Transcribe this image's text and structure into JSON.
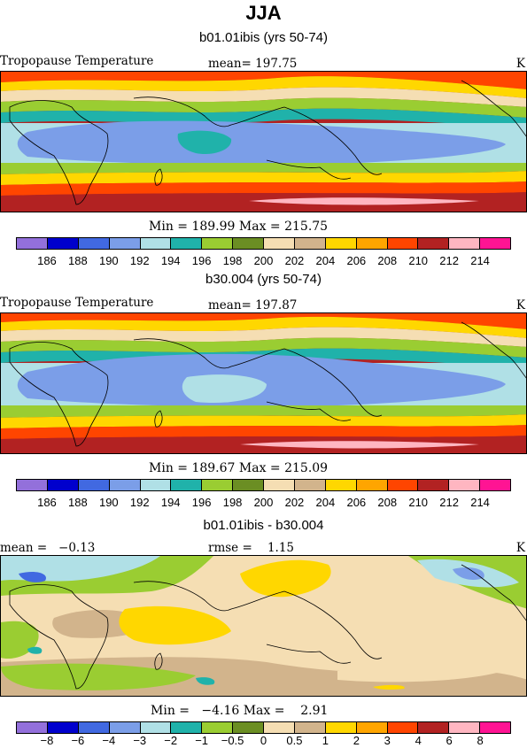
{
  "title": "JJA",
  "panels": [
    {
      "title": "b01.01ibis (yrs 50-74)",
      "left_label": "Tropopause Temperature",
      "center_label": "mean= 197.75",
      "right_label": "K",
      "stats": "Min = 189.99 Max = 215.75",
      "legend_labels": [
        "186",
        "188",
        "190",
        "192",
        "194",
        "196",
        "198",
        "200",
        "202",
        "204",
        "206",
        "208",
        "210",
        "212",
        "214"
      ]
    },
    {
      "title": "b30.004 (yrs 50-74)",
      "left_label": "Tropopause Temperature",
      "center_label": "mean= 197.87",
      "right_label": "K",
      "stats": "Min = 189.67 Max = 215.09",
      "legend_labels": [
        "186",
        "188",
        "190",
        "192",
        "194",
        "196",
        "198",
        "200",
        "202",
        "204",
        "206",
        "208",
        "210",
        "212",
        "214"
      ]
    },
    {
      "title": "b01.01ibis - b30.004",
      "left_label": "mean =   −0.13",
      "center_label": "rmse =    1.15",
      "right_label": "K",
      "stats": "Min =   −4.16 Max =    2.91",
      "legend_labels": [
        "−8",
        "−6",
        "−4",
        "−3",
        "−2",
        "−1",
        "−0.5",
        "0",
        "0.5",
        "1",
        "2",
        "3",
        "4",
        "6",
        "8"
      ]
    }
  ],
  "chart_data": [
    {
      "type": "heatmap",
      "title": "b01.01ibis (yrs 50-74)",
      "variable": "Tropopause Temperature",
      "units": "K",
      "mean": 197.75,
      "min": 189.99,
      "max": 215.75,
      "levels": [
        186,
        188,
        190,
        192,
        194,
        196,
        198,
        200,
        202,
        204,
        206,
        208,
        210,
        212,
        214
      ]
    },
    {
      "type": "heatmap",
      "title": "b30.004 (yrs 50-74)",
      "variable": "Tropopause Temperature",
      "units": "K",
      "mean": 197.87,
      "min": 189.67,
      "max": 215.09,
      "levels": [
        186,
        188,
        190,
        192,
        194,
        196,
        198,
        200,
        202,
        204,
        206,
        208,
        210,
        212,
        214
      ]
    },
    {
      "type": "heatmap",
      "title": "b01.01ibis - b30.004",
      "units": "K",
      "mean": -0.13,
      "rmse": 1.15,
      "min": -4.16,
      "max": 2.91,
      "levels": [
        -8,
        -6,
        -4,
        -3,
        -2,
        -1,
        -0.5,
        0,
        0.5,
        1,
        2,
        3,
        4,
        6,
        8
      ]
    }
  ],
  "colorbar_colors": [
    "#9370db",
    "#0000cd",
    "#4169e1",
    "#7b9ee8",
    "#b0e0e6",
    "#20b2aa",
    "#9acd32",
    "#6b8e23",
    "#f5deb3",
    "#d2b48c",
    "#ffd700",
    "#ffa500",
    "#ff4500",
    "#b22222",
    "#ffb6c1",
    "#ff1493"
  ]
}
